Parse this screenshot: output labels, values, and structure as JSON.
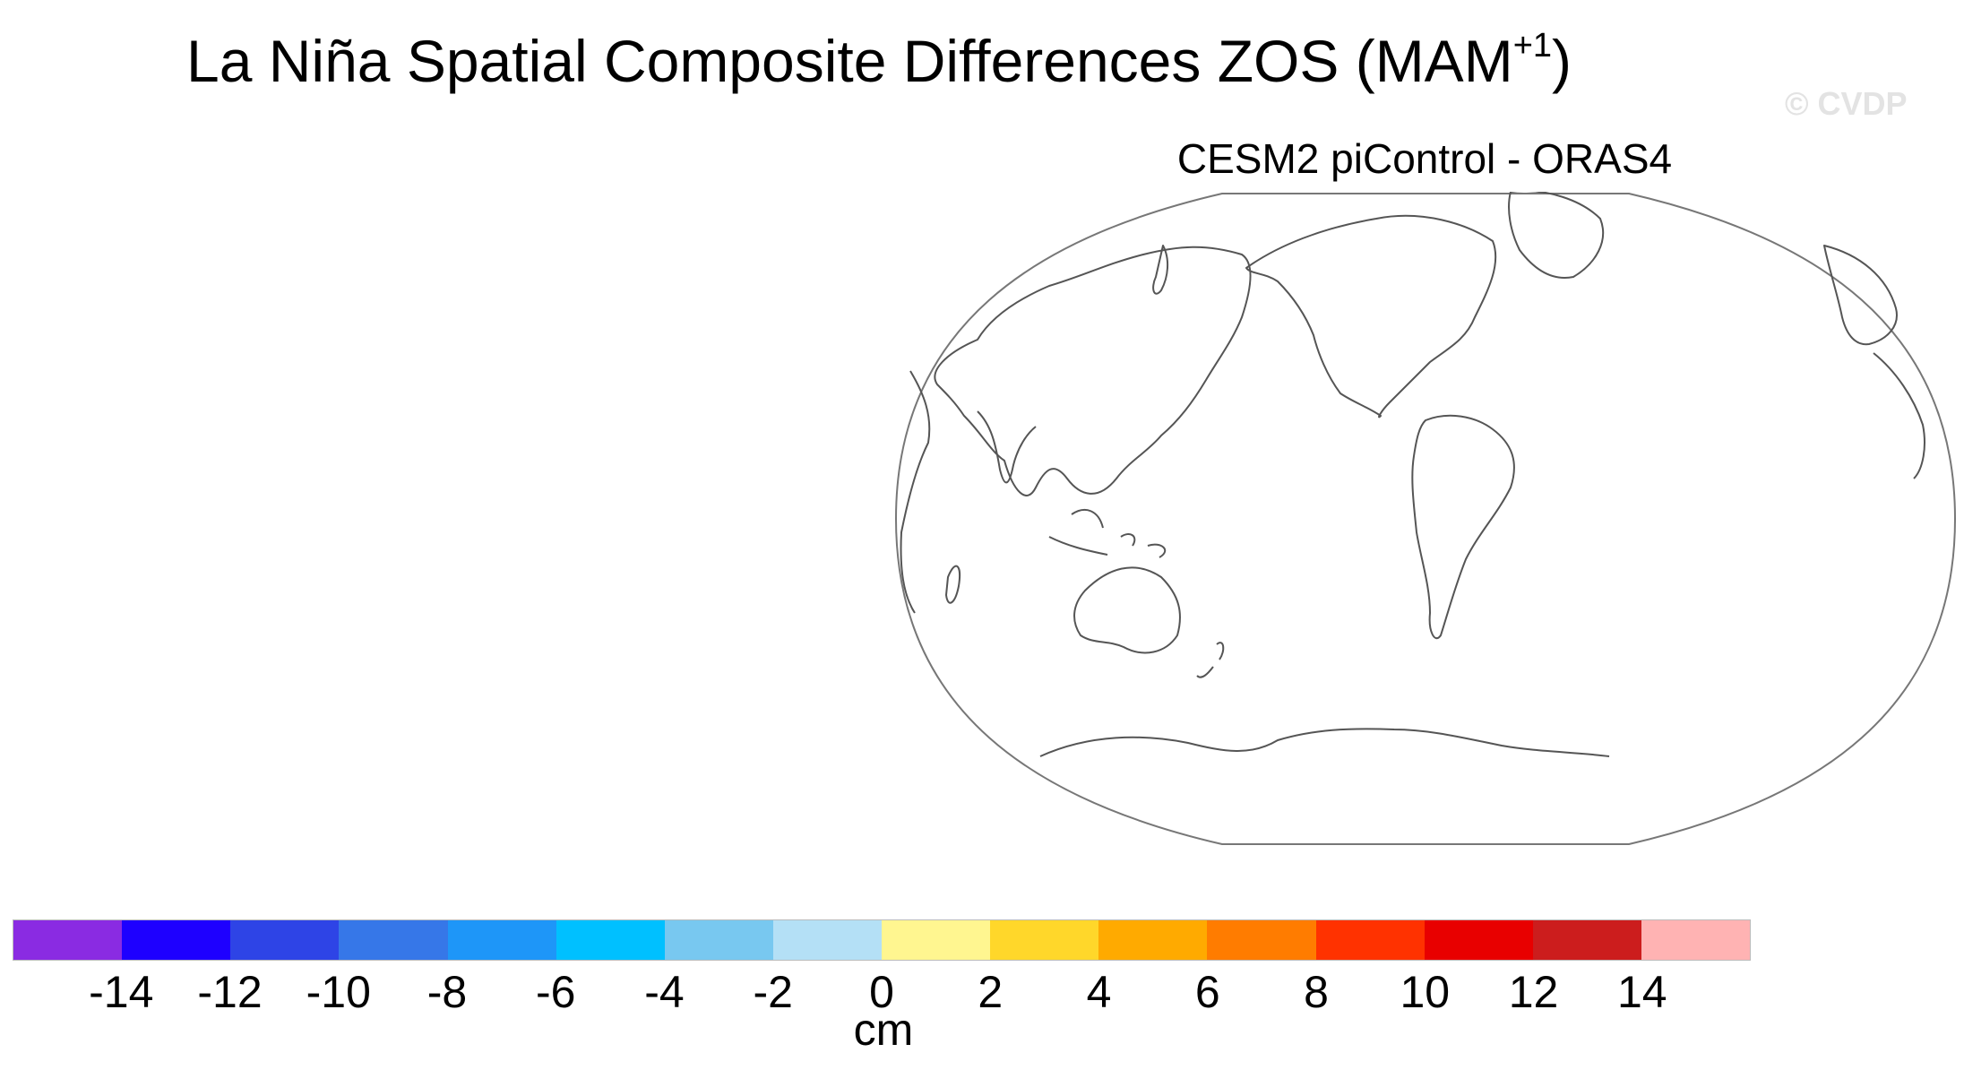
{
  "title": {
    "main": "La Niña Spatial Composite Differences ZOS (MAM",
    "superscript": "+1",
    "close": ")"
  },
  "watermark": "© CVDP",
  "panel": {
    "title": "CESM2 piControl - ORAS4",
    "projection": "Robinson",
    "central_longitude": 210,
    "map_fill": "none (no shaded data)",
    "coastline_color": "#555555"
  },
  "colorbar": {
    "unit": "cm",
    "ticks": [
      "-14",
      "-12",
      "-10",
      "-8",
      "-6",
      "-4",
      "-2",
      "0",
      "2",
      "4",
      "6",
      "8",
      "10",
      "12",
      "14"
    ],
    "colors": [
      "#8a2be2",
      "#1e00ff",
      "#2e44e6",
      "#3677e8",
      "#1e96f8",
      "#00c0ff",
      "#78c8f0",
      "#b4e0f6",
      "#fff690",
      "#ffd72a",
      "#ffaa00",
      "#ff7c00",
      "#ff3200",
      "#e80000",
      "#cc1d1d",
      "#ffb3b3"
    ]
  }
}
